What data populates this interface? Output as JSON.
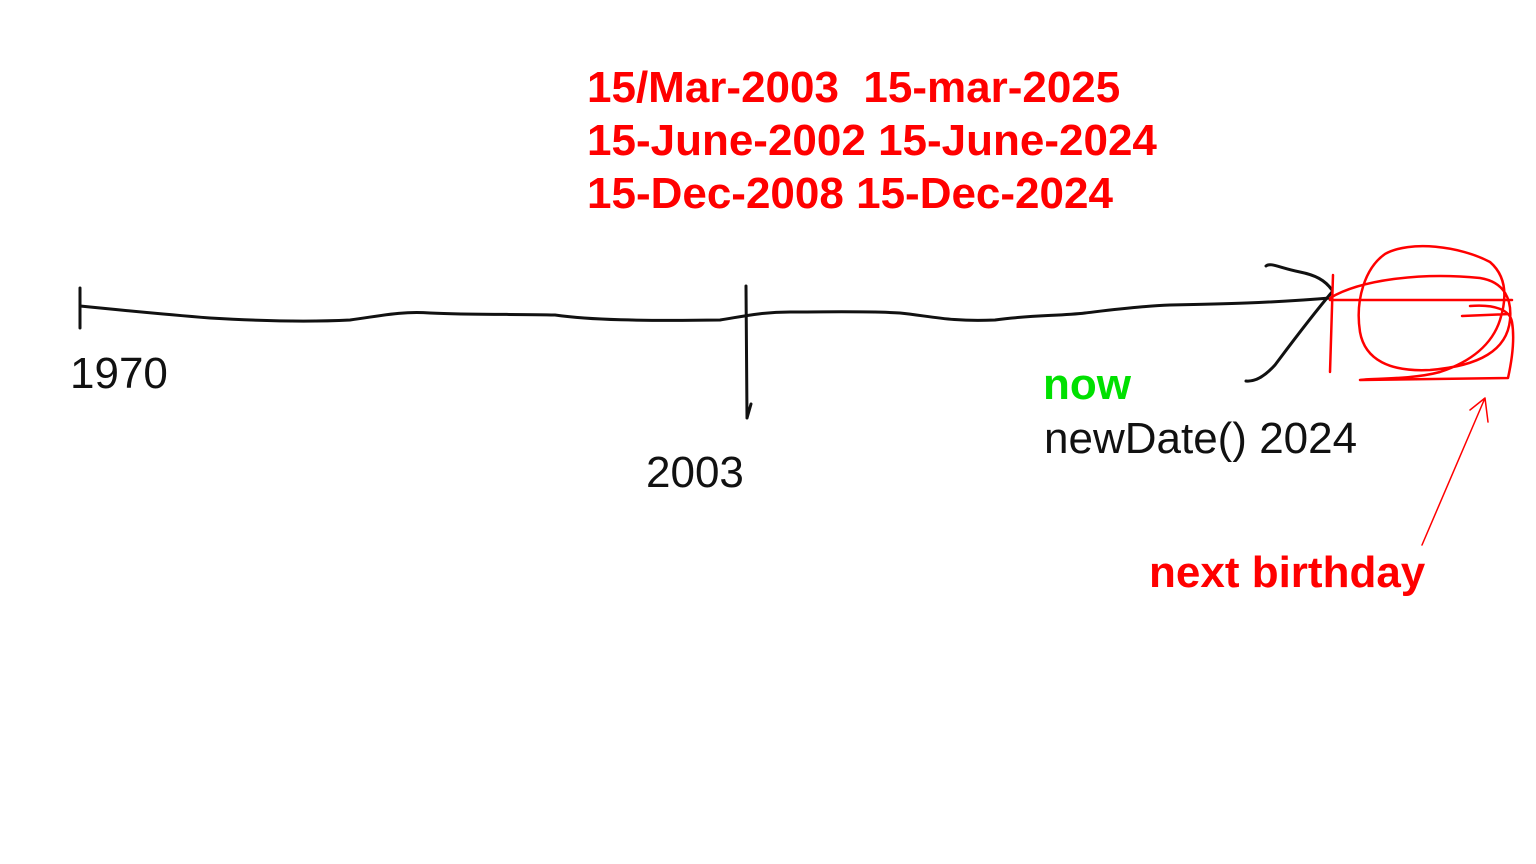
{
  "date_pairs": [
    {
      "birth": "15/Mar-2003",
      "next": "15-mar-2025",
      "sep": "  "
    },
    {
      "birth": "15-June-2002",
      "next": "15-June-2024",
      "sep": " "
    },
    {
      "birth": "15-Dec-2008",
      "next": "15-Dec-2024",
      "sep": " "
    }
  ],
  "timeline": {
    "start_label": "1970",
    "mid_label": "2003"
  },
  "now": {
    "label": "now",
    "expression": "newDate() 2024"
  },
  "next_birthday_label": "next birthday",
  "colors": {
    "annotation": "#ff0000",
    "now": "#00e000",
    "ink": "#111111"
  }
}
